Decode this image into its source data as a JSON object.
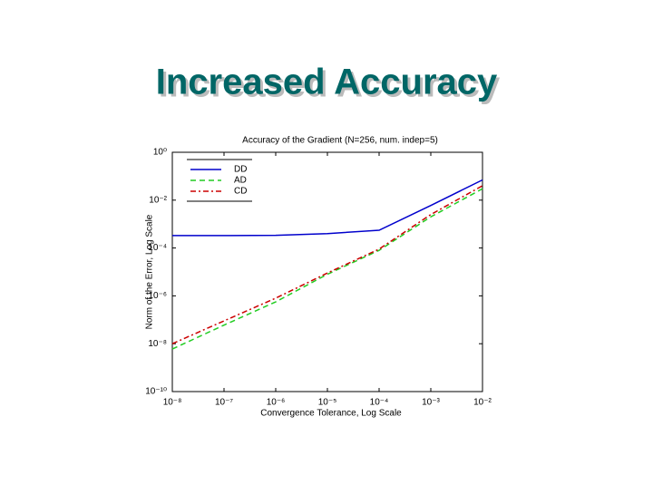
{
  "slide_title": "Increased Accuracy",
  "chart_data": {
    "type": "line",
    "title": "Accuracy of the Gradient (N=256, num. indep=5)",
    "x_label": "Convergence Tolerance, Log Scale",
    "y_label": "Norm of the Error, Log Scale",
    "x": [
      1e-08,
      1e-07,
      1e-06,
      1e-05,
      0.0001,
      0.001,
      0.01
    ],
    "series": [
      {
        "name": "DD",
        "color": "#0000cc",
        "dash": "solid",
        "values": [
          0.00033,
          0.00033,
          0.00034,
          0.0004,
          0.00055,
          0.006,
          0.07
        ]
      },
      {
        "name": "AD",
        "color": "#22cc22",
        "dash": "dashed",
        "values": [
          6e-09,
          6e-08,
          5.6e-07,
          8e-06,
          8e-05,
          0.002,
          0.03
        ]
      },
      {
        "name": "CD",
        "color": "#cc0000",
        "dash": "dashdot",
        "values": [
          1e-08,
          9e-08,
          8e-07,
          9e-06,
          9e-05,
          0.0025,
          0.04
        ]
      }
    ],
    "xscale": "log",
    "yscale": "log",
    "xlim": [
      1e-08,
      0.01
    ],
    "ylim": [
      1e-10,
      1
    ],
    "xticks": [
      {
        "value": 1e-08,
        "label": "10⁻⁸"
      },
      {
        "value": 1e-07,
        "label": "10⁻⁷"
      },
      {
        "value": 1e-06,
        "label": "10⁻⁶"
      },
      {
        "value": 1e-05,
        "label": "10⁻⁵"
      },
      {
        "value": 0.0001,
        "label": "10⁻⁴"
      },
      {
        "value": 0.001,
        "label": "10⁻³"
      },
      {
        "value": 0.01,
        "label": "10⁻²"
      }
    ],
    "yticks": [
      {
        "value": 1e-10,
        "label": "10⁻¹⁰"
      },
      {
        "value": 1e-08,
        "label": "10⁻⁸"
      },
      {
        "value": 1e-06,
        "label": "10⁻⁶"
      },
      {
        "value": 0.0001,
        "label": "10⁻⁴"
      },
      {
        "value": 0.01,
        "label": "10⁻²"
      },
      {
        "value": 1,
        "label": "10⁰"
      }
    ],
    "grid": false,
    "legend": "upper-left"
  }
}
